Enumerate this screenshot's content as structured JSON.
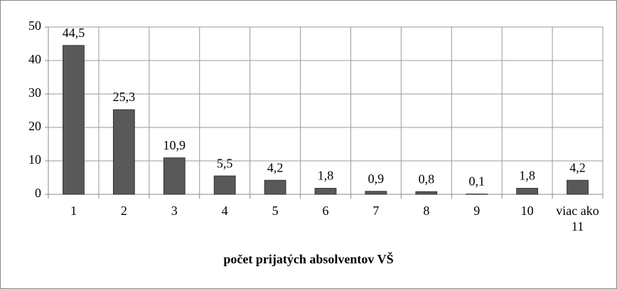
{
  "chart_data": {
    "type": "bar",
    "x_label": "počet prijatých absolventov VŠ",
    "categories": [
      "1",
      "2",
      "3",
      "4",
      "5",
      "6",
      "7",
      "8",
      "9",
      "10",
      "viac ako 11"
    ],
    "values": [
      44.5,
      25.3,
      10.9,
      5.5,
      4.2,
      1.8,
      0.9,
      0.8,
      0.1,
      1.8,
      4.2
    ],
    "value_labels": [
      "44,5",
      "25,3",
      "10,9",
      "5,5",
      "4,2",
      "1,8",
      "0,9",
      "0,8",
      "0,1",
      "1,8",
      "4,2"
    ],
    "color": "#595959",
    "ylim": [
      0,
      50
    ],
    "yticks": [
      0,
      10,
      20,
      30,
      40,
      50
    ],
    "grid": true
  }
}
